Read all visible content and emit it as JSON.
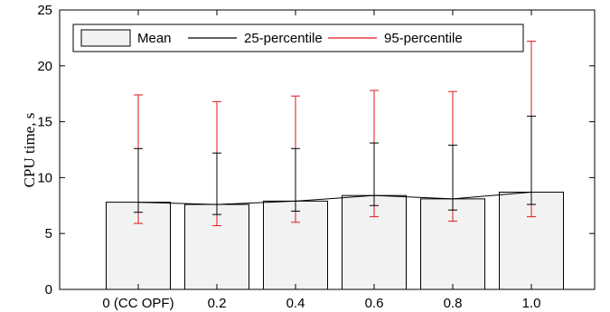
{
  "chart_data": {
    "type": "bar",
    "title": "",
    "xlabel": "",
    "ylabel": "CPU time, s",
    "categories": [
      "0 (CC OPF)",
      "0.2",
      "0.4",
      "0.6",
      "0.8",
      "1.0"
    ],
    "ylim": [
      0,
      25
    ],
    "yticks": [
      0,
      5,
      10,
      15,
      20,
      25
    ],
    "grid": false,
    "legend_position": "top-left",
    "series": [
      {
        "name": "Mean",
        "values": [
          7.8,
          7.6,
          7.9,
          8.4,
          8.1,
          8.7
        ]
      },
      {
        "name": "25-percentile",
        "low": [
          6.9,
          6.7,
          7.0,
          7.5,
          7.1,
          7.6
        ],
        "high": [
          12.6,
          12.2,
          12.6,
          13.1,
          12.9,
          15.5
        ]
      },
      {
        "name": "95-percentile",
        "low": [
          5.9,
          5.7,
          6.0,
          6.5,
          6.1,
          6.5
        ],
        "high": [
          17.4,
          16.8,
          17.3,
          17.8,
          17.7,
          22.2
        ]
      }
    ],
    "colors": {
      "bar_fill": "#f2f2f2",
      "bar_stroke": "#000000",
      "p25": "#000000",
      "p95": "#e0161b"
    }
  }
}
